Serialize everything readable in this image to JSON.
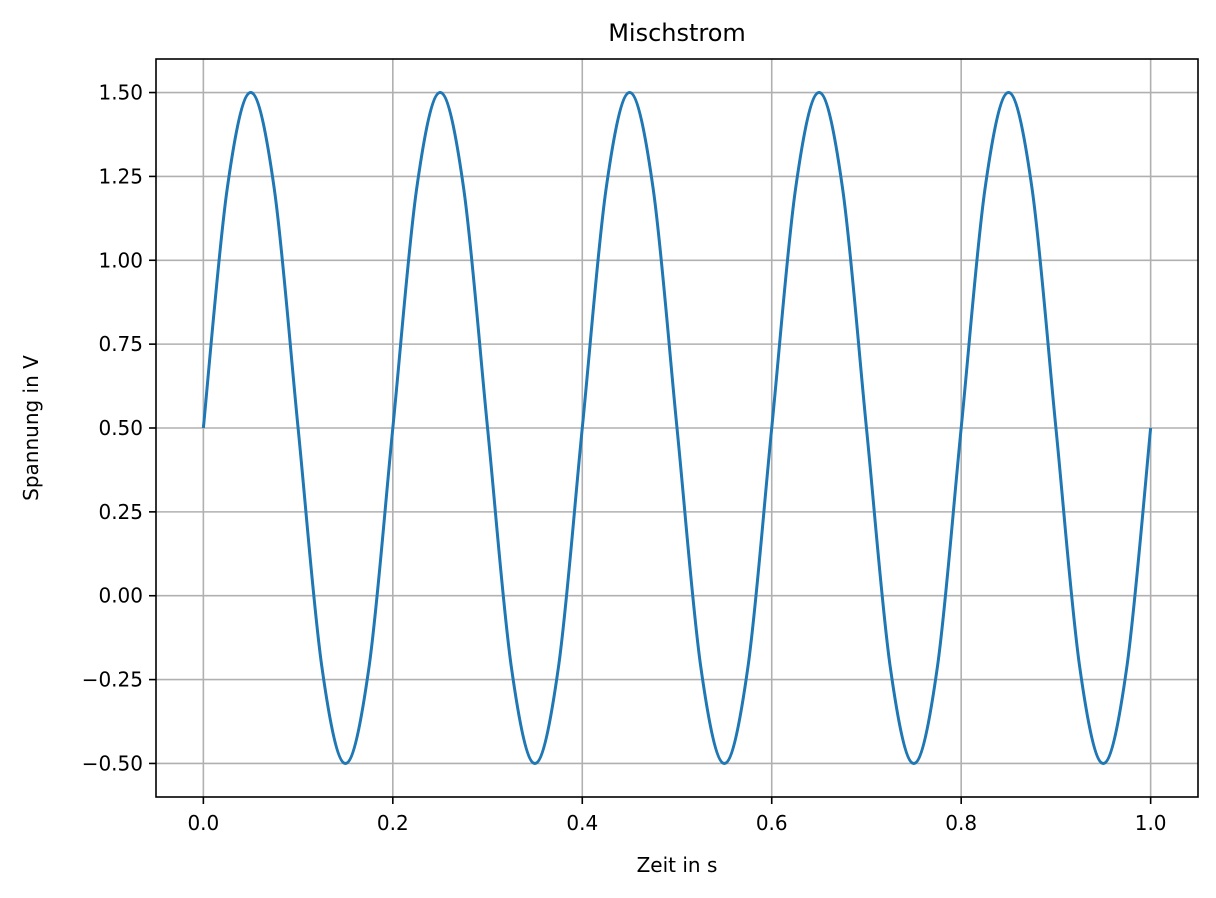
{
  "chart_data": {
    "type": "line",
    "title": "Mischstrom",
    "xlabel": "Zeit in s",
    "ylabel": "Spannung in V",
    "xlim": [
      -0.05,
      1.05
    ],
    "ylim": [
      -0.6,
      1.6
    ],
    "x_ticks": [
      0.0,
      0.2,
      0.4,
      0.6,
      0.8,
      1.0
    ],
    "x_tick_labels": [
      "0.0",
      "0.2",
      "0.4",
      "0.6",
      "0.8",
      "1.0"
    ],
    "y_ticks": [
      -0.5,
      -0.25,
      0.0,
      0.25,
      0.5,
      0.75,
      1.0,
      1.25,
      1.5
    ],
    "y_tick_labels": [
      "−0.50",
      "−0.25",
      "0.00",
      "0.25",
      "0.50",
      "0.75",
      "1.00",
      "1.25",
      "1.50"
    ],
    "grid": true,
    "series": [
      {
        "color": "#1f77b4",
        "x": [
          0.0,
          0.025,
          0.05,
          0.075,
          0.1,
          0.125,
          0.15,
          0.175,
          0.2,
          0.225,
          0.25,
          0.275,
          0.3,
          0.325,
          0.35,
          0.375,
          0.4,
          0.425,
          0.45,
          0.475,
          0.5,
          0.525,
          0.55,
          0.575,
          0.6,
          0.625,
          0.65,
          0.675,
          0.7,
          0.725,
          0.75,
          0.775,
          0.8,
          0.825,
          0.85,
          0.875,
          0.9,
          0.925,
          0.95,
          0.975,
          1.0
        ],
        "y": [
          0.5,
          1.21,
          1.5,
          1.21,
          0.5,
          -0.21,
          -0.5,
          -0.21,
          0.5,
          1.21,
          1.5,
          1.21,
          0.5,
          -0.21,
          -0.5,
          -0.21,
          0.5,
          1.21,
          1.5,
          1.21,
          0.5,
          -0.21,
          -0.5,
          -0.21,
          0.5,
          1.21,
          1.5,
          1.21,
          0.5,
          -0.21,
          -0.5,
          -0.21,
          0.5,
          1.21,
          1.5,
          1.21,
          0.5,
          -0.21,
          -0.5,
          -0.21,
          0.5
        ]
      }
    ]
  },
  "style": {
    "line_color": "#1f77b4",
    "grid_color": "#b0b0b0",
    "axis_color": "#000000",
    "background": "#ffffff"
  }
}
